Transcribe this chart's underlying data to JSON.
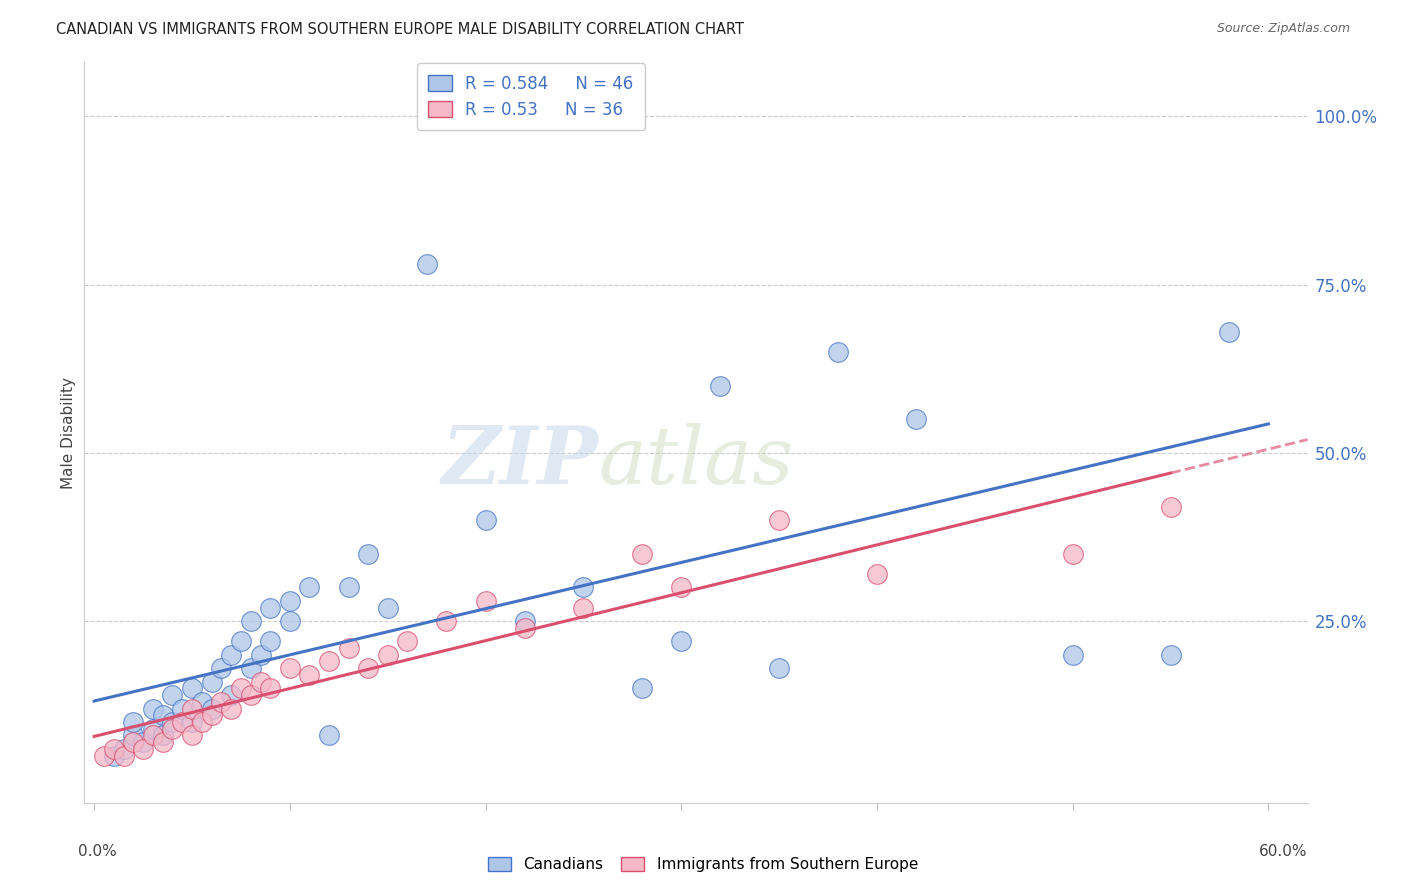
{
  "title": "CANADIAN VS IMMIGRANTS FROM SOUTHERN EUROPE MALE DISABILITY CORRELATION CHART",
  "source": "Source: ZipAtlas.com",
  "ylabel": "Male Disability",
  "yticks": [
    0.0,
    0.25,
    0.5,
    0.75,
    1.0
  ],
  "ytick_labels": [
    "",
    "25.0%",
    "50.0%",
    "75.0%",
    "100.0%"
  ],
  "xlim": [
    -0.005,
    0.62
  ],
  "ylim": [
    -0.02,
    1.08
  ],
  "canadians_R": 0.584,
  "canadians_N": 46,
  "immigrants_R": 0.53,
  "immigrants_N": 36,
  "canadians_color": "#aec6e8",
  "canadians_line_color": "#4472c4",
  "immigrants_color": "#f5b8c8",
  "immigrants_line_color": "#d94f6e",
  "watermark_zip": "ZIP",
  "watermark_atlas": "atlas",
  "canadians_x": [
    0.01,
    0.015,
    0.02,
    0.02,
    0.025,
    0.03,
    0.03,
    0.035,
    0.035,
    0.04,
    0.04,
    0.045,
    0.05,
    0.05,
    0.055,
    0.06,
    0.06,
    0.065,
    0.07,
    0.07,
    0.075,
    0.08,
    0.08,
    0.085,
    0.09,
    0.09,
    0.1,
    0.1,
    0.11,
    0.12,
    0.13,
    0.14,
    0.15,
    0.17,
    0.2,
    0.22,
    0.25,
    0.28,
    0.3,
    0.32,
    0.35,
    0.38,
    0.42,
    0.5,
    0.55,
    0.58
  ],
  "canadians_y": [
    0.05,
    0.06,
    0.08,
    0.1,
    0.07,
    0.09,
    0.12,
    0.08,
    0.11,
    0.1,
    0.14,
    0.12,
    0.1,
    0.15,
    0.13,
    0.16,
    0.12,
    0.18,
    0.14,
    0.2,
    0.22,
    0.18,
    0.25,
    0.2,
    0.22,
    0.27,
    0.25,
    0.28,
    0.3,
    0.08,
    0.3,
    0.35,
    0.27,
    0.78,
    0.4,
    0.25,
    0.3,
    0.15,
    0.22,
    0.6,
    0.18,
    0.65,
    0.55,
    0.2,
    0.2,
    0.68
  ],
  "immigrants_x": [
    0.005,
    0.01,
    0.015,
    0.02,
    0.025,
    0.03,
    0.035,
    0.04,
    0.045,
    0.05,
    0.05,
    0.055,
    0.06,
    0.065,
    0.07,
    0.075,
    0.08,
    0.085,
    0.09,
    0.1,
    0.11,
    0.12,
    0.13,
    0.14,
    0.15,
    0.16,
    0.18,
    0.2,
    0.22,
    0.25,
    0.28,
    0.3,
    0.35,
    0.4,
    0.5,
    0.55
  ],
  "immigrants_y": [
    0.05,
    0.06,
    0.05,
    0.07,
    0.06,
    0.08,
    0.07,
    0.09,
    0.1,
    0.08,
    0.12,
    0.1,
    0.11,
    0.13,
    0.12,
    0.15,
    0.14,
    0.16,
    0.15,
    0.18,
    0.17,
    0.19,
    0.21,
    0.18,
    0.2,
    0.22,
    0.25,
    0.28,
    0.24,
    0.27,
    0.35,
    0.3,
    0.4,
    0.32,
    0.35,
    0.42
  ],
  "blue_line_x0": 0.0,
  "blue_line_y0": 0.068,
  "blue_line_x1": 0.58,
  "blue_line_y1": 0.68,
  "pink_line_x0": 0.0,
  "pink_line_y0": 0.055,
  "pink_line_x1": 0.55,
  "pink_line_y1": 0.42
}
